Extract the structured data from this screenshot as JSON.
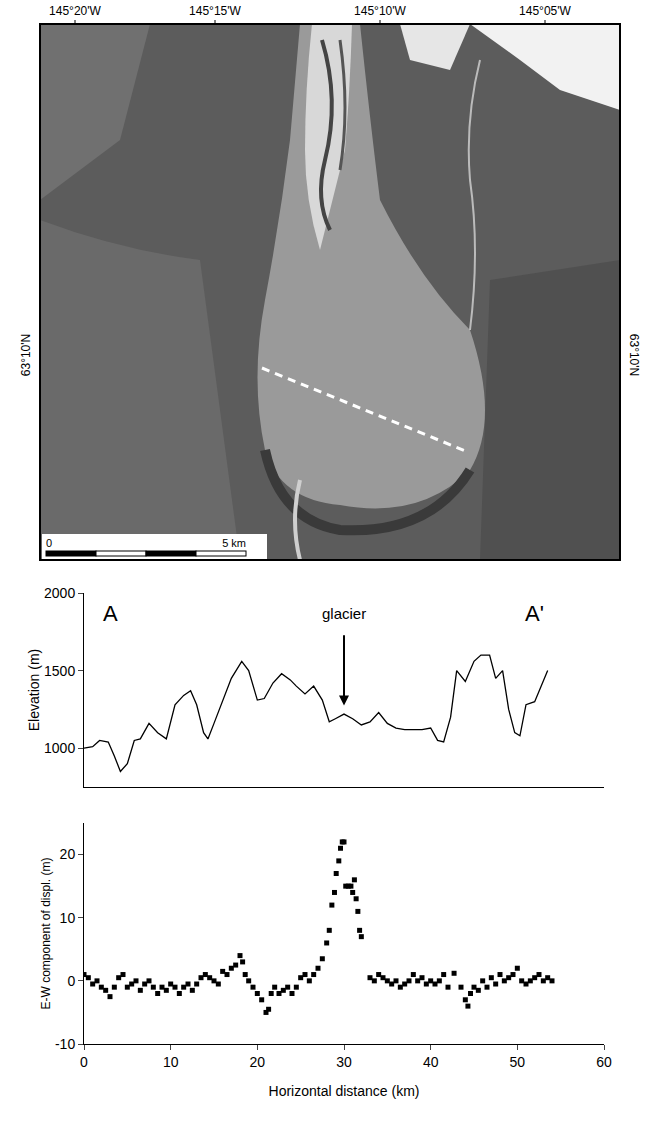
{
  "map": {
    "top_labels": [
      "145°20'W",
      "145°15'W",
      "145°10'W",
      "145°05'W"
    ],
    "left_label": "63°10'N",
    "right_label": "63°10'N",
    "scale_labels": [
      "0",
      "5 km"
    ]
  },
  "chart_data": [
    {
      "type": "line",
      "ylabel": "Elevation (m)",
      "color": "#000000",
      "tick_labels": "y",
      "annotations": [
        {
          "text": "A",
          "x": 3,
          "y": 1870
        },
        {
          "text": "A'",
          "x": 52,
          "y": 1870
        },
        {
          "text": "glacier",
          "x": 30,
          "y": 1870,
          "arrow_to": 1250
        }
      ],
      "x": [
        0,
        1,
        1.8,
        2.8,
        3.5,
        4.2,
        5,
        5.8,
        6.5,
        7.5,
        8.5,
        9.5,
        10.5,
        11.5,
        12.3,
        13,
        13.8,
        14.3,
        15,
        16,
        17,
        18.2,
        19,
        20,
        20.8,
        21.8,
        22.8,
        23.8,
        24.5,
        25.5,
        26.5,
        27.5,
        28.3,
        29,
        30,
        31,
        32,
        33,
        34,
        35,
        36,
        37,
        38,
        39,
        40,
        40.8,
        41.5,
        42.3,
        43,
        44,
        45,
        45.8,
        46.8,
        47.5,
        48.3,
        49,
        49.7,
        50.3,
        51,
        52,
        53.5
      ],
      "values": [
        1000,
        1010,
        1050,
        1040,
        950,
        850,
        900,
        1050,
        1060,
        1160,
        1100,
        1060,
        1280,
        1340,
        1370,
        1280,
        1100,
        1060,
        1160,
        1300,
        1450,
        1560,
        1500,
        1310,
        1320,
        1420,
        1480,
        1440,
        1400,
        1350,
        1400,
        1310,
        1170,
        1190,
        1220,
        1190,
        1150,
        1170,
        1230,
        1160,
        1130,
        1120,
        1120,
        1120,
        1130,
        1050,
        1040,
        1200,
        1500,
        1430,
        1560,
        1600,
        1600,
        1450,
        1500,
        1250,
        1100,
        1080,
        1280,
        1300,
        1500
      ],
      "xlim": [
        0,
        60
      ],
      "ylim": [
        750,
        2000
      ],
      "yticks": [
        1000,
        1500,
        2000
      ]
    },
    {
      "type": "scatter",
      "xlabel": "Horizontal distance (km)",
      "ylabel": "E-W component of displ. (m)",
      "color": "#000000",
      "marker": "square",
      "x": [
        0,
        0.5,
        1,
        1.5,
        2,
        2.5,
        3,
        3.5,
        4,
        4.5,
        5,
        5.5,
        6,
        6.5,
        7,
        7.5,
        8,
        8.5,
        9,
        9.5,
        10,
        10.5,
        11,
        11.5,
        12,
        12.5,
        13,
        13.5,
        14,
        14.5,
        15,
        15.5,
        16,
        16.5,
        17,
        17.5,
        18,
        18.3,
        18.6,
        19,
        19.5,
        20,
        20.5,
        21,
        21.3,
        21.6,
        22,
        22.5,
        23,
        23.5,
        24,
        24.5,
        25,
        25.5,
        26,
        26.5,
        27,
        27.5,
        28,
        28.3,
        28.6,
        28.9,
        29.1,
        29.4,
        29.6,
        29.8,
        30,
        30.2,
        30.5,
        30.8,
        31,
        31.2,
        31.4,
        31.6,
        31.8,
        32,
        33,
        33.5,
        34,
        34.5,
        35,
        35.5,
        36,
        36.5,
        37,
        37.5,
        38,
        38.5,
        39,
        39.5,
        40,
        40.5,
        41,
        41.5,
        42,
        42.7,
        43.5,
        44,
        44.3,
        44.6,
        45,
        45.5,
        46,
        46.5,
        47,
        47.5,
        48,
        48.5,
        49,
        49.5,
        50,
        50.5,
        51,
        51.5,
        52,
        52.5,
        53,
        53.5,
        54
      ],
      "values": [
        1,
        0.5,
        -0.5,
        0,
        -1,
        -1.5,
        -2.5,
        -1,
        0.5,
        1,
        -1,
        -0.5,
        0,
        -1.5,
        -0.5,
        0,
        -1,
        -2,
        -1,
        -1.5,
        -0.5,
        -1,
        -2,
        -1,
        -0.5,
        -1.5,
        -0.5,
        0.5,
        1,
        0.5,
        0,
        -0.5,
        1.5,
        1,
        2,
        2.5,
        4,
        3,
        1,
        0,
        -1,
        -2,
        -3,
        -5,
        -4.5,
        -2,
        -1,
        -2,
        -1.5,
        -1,
        -2,
        -1,
        0.5,
        1,
        0,
        1,
        2,
        3.5,
        6,
        8,
        12,
        14,
        17,
        19,
        21,
        22,
        22,
        15,
        15,
        15,
        14,
        16,
        13,
        11,
        8,
        7,
        0.5,
        0,
        1,
        0.5,
        0,
        -0.5,
        0,
        -1,
        -0.5,
        0,
        1,
        0,
        0.5,
        -0.5,
        0,
        -0.5,
        0,
        1,
        -1,
        1.2,
        -1,
        -3,
        -4,
        -2,
        -1,
        -1.5,
        0,
        -1,
        0.5,
        -0.5,
        1,
        0,
        0.5,
        1,
        2,
        0,
        -0.5,
        0,
        0.5,
        1,
        0,
        0.5,
        0
      ],
      "xlim": [
        0,
        60
      ],
      "xticks": [
        0,
        10,
        20,
        30,
        40,
        50,
        60
      ],
      "ylim": [
        -10,
        25
      ],
      "yticks": [
        -10,
        0,
        10,
        20
      ]
    }
  ]
}
